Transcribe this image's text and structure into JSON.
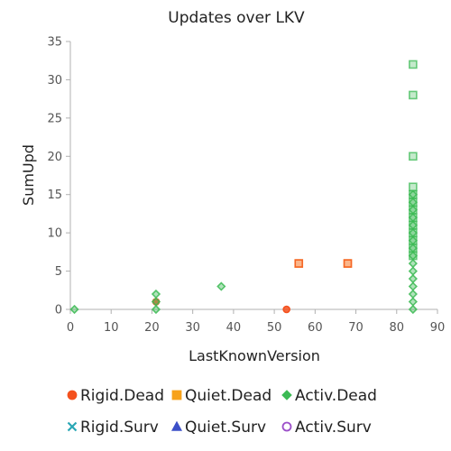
{
  "chart_data": {
    "type": "scatter",
    "title": "Updates over LKV",
    "xlabel": "LastKnownVersion",
    "ylabel": "SumUpd",
    "xlim": [
      0,
      90
    ],
    "ylim": [
      0,
      35
    ],
    "xticks": [
      0,
      10,
      20,
      30,
      40,
      50,
      60,
      70,
      80,
      90
    ],
    "yticks": [
      0,
      5,
      10,
      15,
      20,
      25,
      30,
      35
    ],
    "grid": false,
    "legend_position": "bottom",
    "series": [
      {
        "name": "Rigid.Dead",
        "color": "#f4511e",
        "marker": "circle",
        "x": [
          21,
          53
        ],
        "y": [
          1,
          0
        ]
      },
      {
        "name": "Quiet.Dead",
        "color": "#f7a21b",
        "marker": "square",
        "x": [
          56,
          68
        ],
        "y": [
          6,
          6
        ]
      },
      {
        "name": "Activ.Dead",
        "color": "#3cba54",
        "marker": "diamond",
        "x": [
          1,
          21,
          21,
          21,
          37,
          84,
          84,
          84,
          84,
          84,
          84,
          84,
          84,
          84,
          84,
          84,
          84,
          84,
          84,
          84,
          84
        ],
        "y": [
          0,
          0,
          1,
          2,
          3,
          0,
          1,
          2,
          3,
          4,
          5,
          6,
          7,
          8,
          9,
          10,
          11,
          12,
          13,
          14,
          15
        ]
      },
      {
        "name": "Rigid.Surv",
        "color": "#2aa7b5",
        "marker": "x",
        "x": [],
        "y": []
      },
      {
        "name": "Quiet.Surv",
        "color": "#3c50c8",
        "marker": "triangle",
        "x": [],
        "y": []
      },
      {
        "name": "Activ.Surv",
        "color": "#9c4fc9",
        "marker": "circle-open",
        "x": [],
        "y": []
      },
      {
        "name": "",
        "color": "#f4511e",
        "marker": "square",
        "x": [
          56,
          68
        ],
        "y": [
          6,
          6
        ]
      },
      {
        "name": "",
        "color": "#3cba54",
        "marker": "square",
        "x": [
          84,
          84,
          84,
          84,
          84,
          84,
          84,
          84,
          84,
          84,
          84,
          84,
          84
        ],
        "y": [
          32,
          28,
          20,
          16,
          15,
          14,
          13,
          12,
          11,
          10,
          9,
          8,
          7
        ]
      }
    ]
  }
}
